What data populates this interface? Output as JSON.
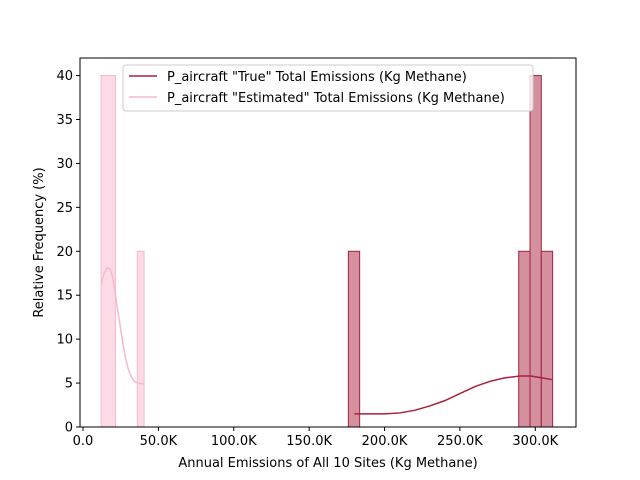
{
  "chart_data": {
    "type": "histogram",
    "xlabel": "Annual Emissions of All 10 Sites (Kg Methane)",
    "ylabel": "Relative Frequency (%)",
    "xlim": [
      -2000,
      327000
    ],
    "ylim": [
      0,
      42
    ],
    "x_ticks": [
      0,
      50000,
      100000,
      150000,
      200000,
      250000,
      300000
    ],
    "x_tick_labels": [
      "0.0",
      "50.0K",
      "100.0K",
      "150.0K",
      "200.0K",
      "250.0K",
      "300.0K"
    ],
    "y_ticks": [
      0,
      5,
      10,
      15,
      20,
      25,
      30,
      35,
      40
    ],
    "y_tick_labels": [
      "0",
      "5",
      "10",
      "15",
      "20",
      "25",
      "30",
      "35",
      "40"
    ],
    "legend_position": "top-right",
    "series": [
      {
        "name": "P_aircraft \"True\" Total Emissions (Kg Methane)",
        "color": "#a7213f",
        "fill": "#d4909f",
        "bins": [
          {
            "x0": 176000,
            "x1": 183500,
            "value": 20
          },
          {
            "x0": 289000,
            "x1": 296500,
            "value": 20
          },
          {
            "x0": 296500,
            "x1": 304000,
            "value": 40
          },
          {
            "x0": 304000,
            "x1": 311500,
            "value": 20
          }
        ],
        "kde": [
          [
            180000,
            1.5
          ],
          [
            190000,
            1.5
          ],
          [
            200000,
            1.5
          ],
          [
            210000,
            1.6
          ],
          [
            220000,
            1.9
          ],
          [
            230000,
            2.4
          ],
          [
            240000,
            3.0
          ],
          [
            250000,
            3.8
          ],
          [
            260000,
            4.6
          ],
          [
            270000,
            5.2
          ],
          [
            280000,
            5.6
          ],
          [
            290000,
            5.8
          ],
          [
            297000,
            5.8
          ],
          [
            304000,
            5.6
          ],
          [
            311000,
            5.4
          ]
        ]
      },
      {
        "name": "P_aircraft \"Estimated\" Total Emissions (Kg Methane)",
        "color": "#f8b8cf",
        "fill": "#fcdbe6",
        "bins": [
          {
            "x0": 12000,
            "x1": 21500,
            "value": 40
          },
          {
            "x0": 36000,
            "x1": 40500,
            "value": 20
          }
        ],
        "kde": [
          [
            12000,
            16.2
          ],
          [
            14000,
            17.5
          ],
          [
            16000,
            18.1
          ],
          [
            18000,
            18.0
          ],
          [
            20000,
            16.8
          ],
          [
            22000,
            14.5
          ],
          [
            24000,
            12.2
          ],
          [
            26000,
            10.0
          ],
          [
            28000,
            8.0
          ],
          [
            30000,
            6.6
          ],
          [
            32000,
            5.7
          ],
          [
            34000,
            5.2
          ],
          [
            36000,
            5.0
          ],
          [
            38000,
            4.95
          ],
          [
            40000,
            4.9
          ]
        ]
      }
    ]
  }
}
